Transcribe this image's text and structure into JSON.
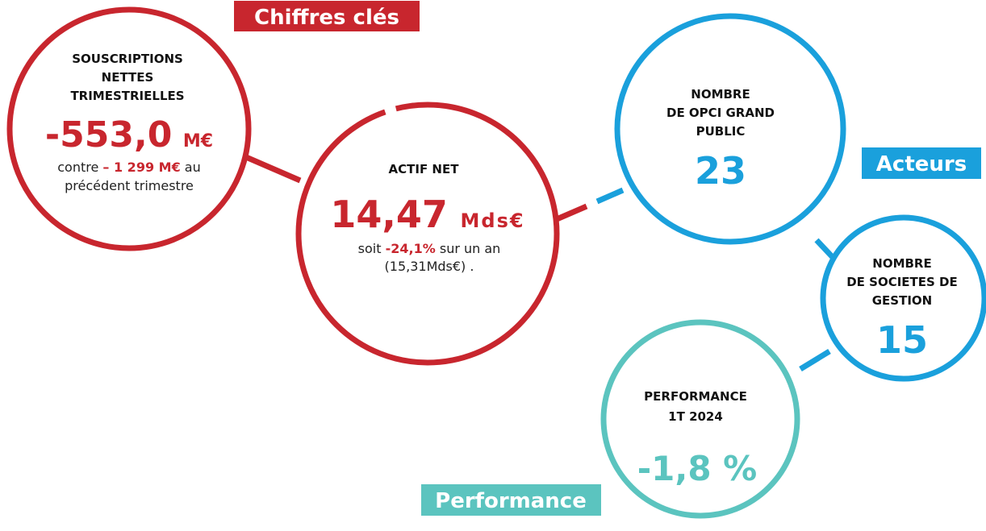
{
  "labels": {
    "chiffres": "Chiffres clés",
    "acteurs": "Acteurs",
    "performance": "Performance"
  },
  "souscriptions": {
    "title": [
      "SOUSCRIPTIONS",
      "NETTES",
      "TRIMESTRIELLES"
    ],
    "value": "-553,0",
    "unit": "M€",
    "note": {
      "before": "contre",
      "highlight": "– 1 299 M€",
      "after": "au",
      "line2": "précédent trimestre"
    }
  },
  "actif": {
    "title": "ACTIF NET",
    "value": "14,47",
    "unit": "Mds€",
    "note": {
      "before": "soit",
      "highlight": "-24,1%",
      "after": "sur un an",
      "line2": "(15,31Mds€) ."
    }
  },
  "opci": {
    "title": [
      "NOMBRE",
      "DE OPCI GRAND",
      "PUBLIC"
    ],
    "value": "23"
  },
  "societes": {
    "title": [
      "NOMBRE",
      "DE SOCIETES DE",
      "GESTION"
    ],
    "value": "15"
  },
  "performance": {
    "title": [
      "PERFORMANCE",
      "1T 2024"
    ],
    "value": "-1,8 %"
  }
}
